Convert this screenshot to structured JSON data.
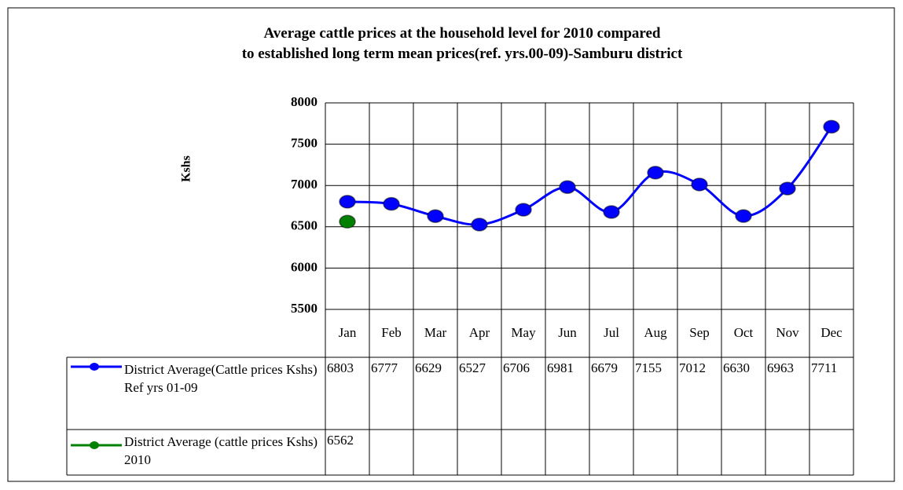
{
  "chart_data": {
    "type": "line",
    "title": "Average cattle prices at the household level for 2010 compared to established long term mean prices(ref. yrs.00-09)-Samburu district",
    "y_label": "Kshs",
    "categories": [
      "Jan",
      "Feb",
      "Mar",
      "Apr",
      "May",
      "Jun",
      "Jul",
      "Aug",
      "Sep",
      "Oct",
      "Nov",
      "Dec"
    ],
    "series": [
      {
        "name": "District Average(Cattle prices Kshs) Ref yrs 01-09",
        "color": "#0000ff",
        "values": [
          6803,
          6777,
          6629,
          6527,
          6706,
          6981,
          6679,
          7155,
          7012,
          6630,
          6963,
          7711
        ]
      },
      {
        "name": "District Average (cattle prices Kshs) 2010",
        "color": "#008000",
        "values": [
          6562,
          null,
          null,
          null,
          null,
          null,
          null,
          null,
          null,
          null,
          null,
          null
        ]
      }
    ],
    "ylim": [
      5500,
      8000
    ],
    "yticks": [
      5500,
      6000,
      6500,
      7000,
      7500,
      8000
    ],
    "grid": true,
    "data_table": true
  }
}
